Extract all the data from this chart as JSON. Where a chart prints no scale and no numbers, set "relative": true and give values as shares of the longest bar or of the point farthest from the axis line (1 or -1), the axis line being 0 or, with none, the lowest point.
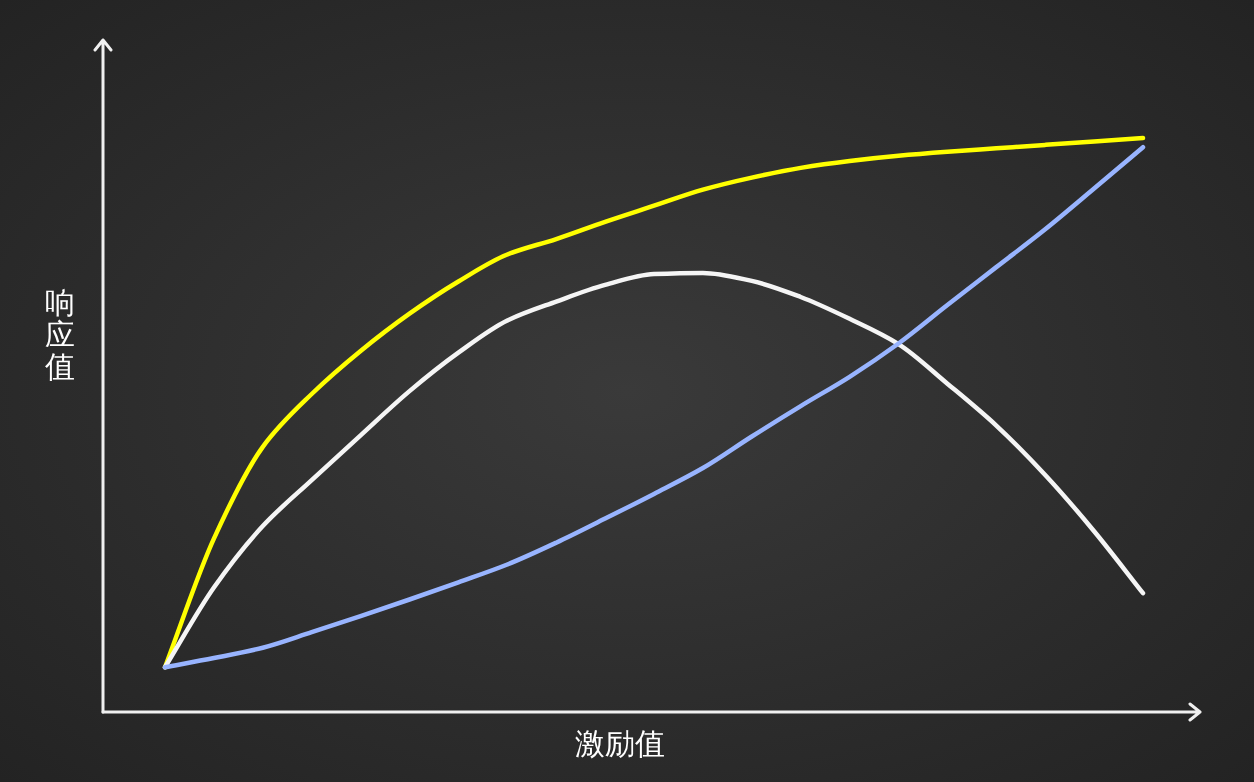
{
  "chart_data": {
    "type": "line",
    "xlabel": "激励值",
    "ylabel": "响应值",
    "relative": true,
    "line_style": "solid",
    "categories": [
      null,
      null,
      null,
      null,
      null,
      null,
      null,
      null,
      null,
      null,
      null,
      null,
      null,
      null,
      null,
      null,
      null,
      null,
      null,
      null,
      null
    ],
    "series": [
      {
        "color": "#ffff00",
        "values": [
          0.078,
          0.302,
          0.462,
          0.554,
          0.629,
          0.694,
          0.75,
          0.797,
          0.824,
          0.854,
          0.882,
          0.91,
          0.931,
          0.948,
          0.96,
          0.969,
          0.976,
          0.982,
          0.988,
          0.994,
          1.0
        ]
      },
      {
        "color": "#f5f5f5",
        "values": [
          0.078,
          0.217,
          0.324,
          0.404,
          0.482,
          0.559,
          0.626,
          0.682,
          0.715,
          0.744,
          0.763,
          0.765,
          0.751,
          0.723,
          0.685,
          0.641,
          0.572,
          0.499,
          0.413,
          0.315,
          0.207
        ]
      },
      {
        "color": "#98b4ff",
        "values": [
          0.078,
          0.094,
          0.112,
          0.139,
          0.167,
          0.196,
          0.226,
          0.257,
          0.295,
          0.337,
          0.38,
          0.425,
          0.48,
          0.533,
          0.584,
          0.642,
          0.709,
          0.775,
          0.841,
          0.912,
          0.984
        ]
      }
    ]
  }
}
